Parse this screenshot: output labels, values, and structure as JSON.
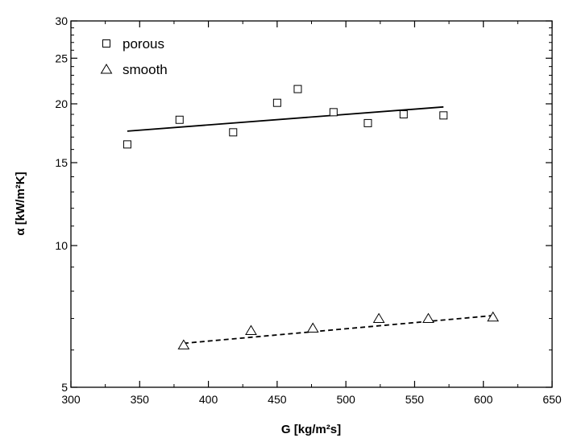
{
  "chart_data": {
    "type": "scatter",
    "xlabel": "G  [kg/m²s]",
    "ylabel": "α  [kW/m²K]",
    "xlim": [
      300,
      650
    ],
    "ylim": [
      5,
      30
    ],
    "yscale": "log",
    "x_ticks": [
      300,
      350,
      400,
      450,
      500,
      550,
      600,
      650
    ],
    "y_ticks": [
      5,
      10,
      15,
      20,
      25,
      30
    ],
    "legend_position": "top-left",
    "series": [
      {
        "name": "porous",
        "marker": "square",
        "points": [
          [
            341,
            16.4
          ],
          [
            379,
            18.5
          ],
          [
            418,
            17.4
          ],
          [
            450,
            20.1
          ],
          [
            465,
            21.5
          ],
          [
            491,
            19.2
          ],
          [
            516,
            18.2
          ],
          [
            542,
            19.0
          ],
          [
            571,
            18.9
          ]
        ],
        "fit": {
          "style": "solid",
          "from": [
            341,
            17.5
          ],
          "to": [
            571,
            19.7
          ]
        }
      },
      {
        "name": "smooth",
        "marker": "triangle",
        "points": [
          [
            382,
            6.15
          ],
          [
            431,
            6.6
          ],
          [
            476,
            6.68
          ],
          [
            524,
            7.0
          ],
          [
            560,
            7.0
          ],
          [
            607,
            7.05
          ]
        ],
        "fit": {
          "style": "dashed",
          "from": [
            382,
            6.2
          ],
          "to": [
            607,
            7.1
          ]
        }
      }
    ]
  }
}
